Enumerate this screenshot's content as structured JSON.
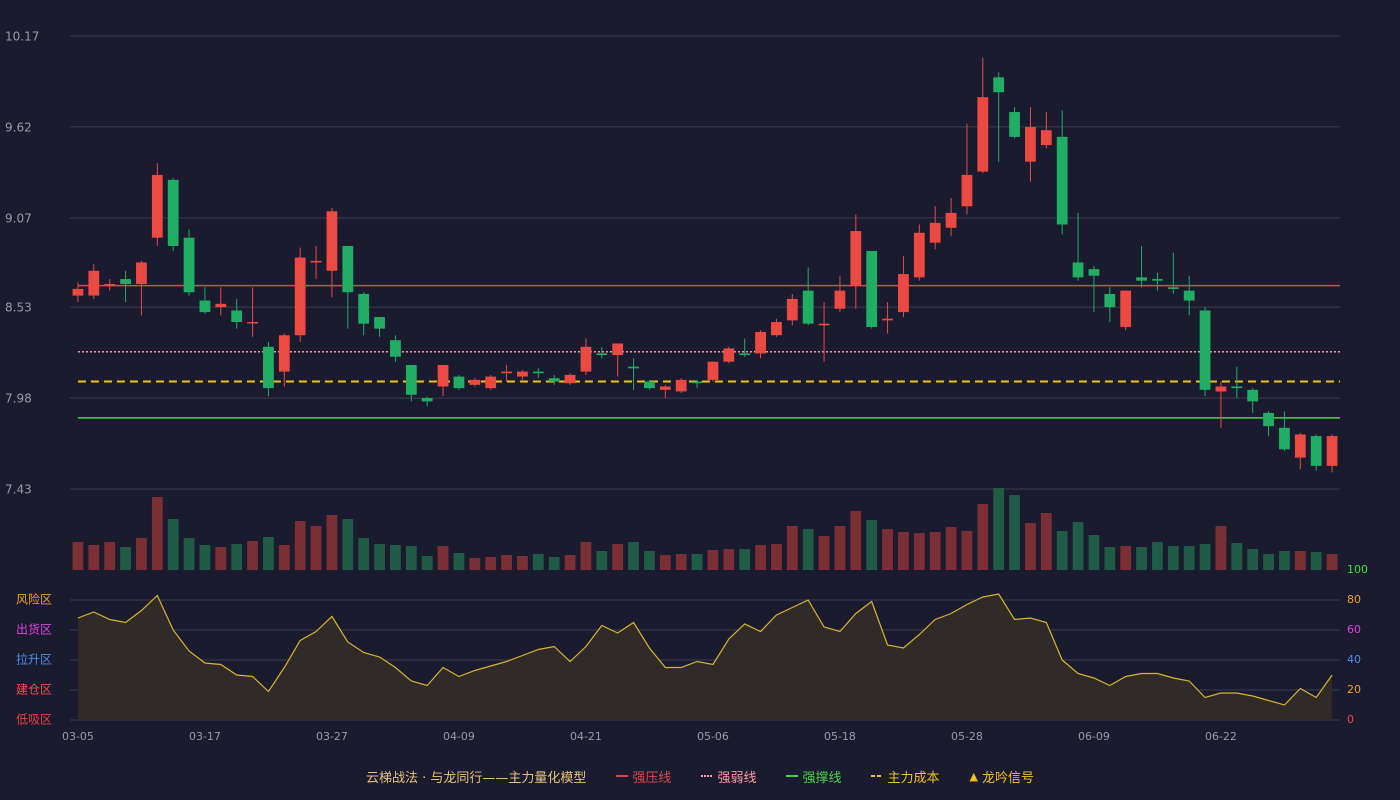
{
  "chart_data": [
    {
      "type": "candlestick",
      "categories": [
        "03-05",
        null,
        null,
        null,
        null,
        null,
        null,
        null,
        "03-17",
        null,
        null,
        null,
        null,
        null,
        null,
        null,
        "03-27",
        null,
        null,
        null,
        null,
        null,
        null,
        null,
        "04-09",
        null,
        null,
        null,
        null,
        null,
        null,
        null,
        "04-21",
        null,
        null,
        null,
        null,
        null,
        null,
        null,
        "05-06",
        null,
        null,
        null,
        null,
        null,
        null,
        null,
        "05-18",
        null,
        null,
        null,
        null,
        null,
        null,
        null,
        "05-28",
        null,
        null,
        null,
        null,
        null,
        null,
        null,
        "06-09",
        null,
        null,
        null,
        null,
        null,
        null,
        null,
        "06-22",
        null,
        null,
        null,
        null,
        null,
        null,
        null
      ],
      "open": [
        8.6,
        8.6,
        8.66,
        8.7,
        8.67,
        8.95,
        9.3,
        8.95,
        8.57,
        8.53,
        8.51,
        8.44,
        8.29,
        8.14,
        8.36,
        8.8,
        8.75,
        8.9,
        8.61,
        8.47,
        8.33,
        8.18,
        7.98,
        8.05,
        8.11,
        8.06,
        8.04,
        8.13,
        8.11,
        8.14,
        8.1,
        8.07,
        8.14,
        8.25,
        8.24,
        8.17,
        8.08,
        8.03,
        8.02,
        8.08,
        8.09,
        8.2,
        8.25,
        8.25,
        8.36,
        8.45,
        8.63,
        8.42,
        8.52,
        8.66,
        8.87,
        8.45,
        8.5,
        8.71,
        8.92,
        9.01,
        9.14,
        9.35,
        9.92,
        9.71,
        9.41,
        9.51,
        9.56,
        8.8,
        8.76,
        8.61,
        8.41,
        8.71,
        8.7,
        8.65,
        8.63,
        8.51,
        8.02,
        8.05,
        8.03,
        7.89,
        7.8,
        7.62,
        7.75,
        7.57
      ],
      "high": [
        8.68,
        8.79,
        8.7,
        8.75,
        8.81,
        9.4,
        9.31,
        9.0,
        8.65,
        8.65,
        8.58,
        8.65,
        8.32,
        8.37,
        8.89,
        8.9,
        9.13,
        8.9,
        8.62,
        8.47,
        8.36,
        8.18,
        7.99,
        8.18,
        8.12,
        8.1,
        8.12,
        8.18,
        8.15,
        8.16,
        8.12,
        8.13,
        8.34,
        8.29,
        8.31,
        8.22,
        8.09,
        8.06,
        8.1,
        8.09,
        8.2,
        8.29,
        8.34,
        8.39,
        8.46,
        8.61,
        8.77,
        8.56,
        8.72,
        9.09,
        8.87,
        8.56,
        8.84,
        9.03,
        9.14,
        9.19,
        9.64,
        10.04,
        9.95,
        9.74,
        9.74,
        9.71,
        9.72,
        9.1,
        8.78,
        8.65,
        8.63,
        8.9,
        8.74,
        8.86,
        8.72,
        8.53,
        8.08,
        8.17,
        8.04,
        7.9,
        7.9,
        7.77,
        7.76,
        7.76
      ],
      "low": [
        8.56,
        8.58,
        8.63,
        8.56,
        8.48,
        8.9,
        8.87,
        8.6,
        8.49,
        8.48,
        8.4,
        8.35,
        7.99,
        8.05,
        8.32,
        8.7,
        8.59,
        8.4,
        8.36,
        8.35,
        8.2,
        7.96,
        7.93,
        7.99,
        8.03,
        8.05,
        8.03,
        8.08,
        8.09,
        8.1,
        8.06,
        8.06,
        8.12,
        8.22,
        8.11,
        8.03,
        8.03,
        7.98,
        8.01,
        8.04,
        8.08,
        8.19,
        8.23,
        8.22,
        8.35,
        8.42,
        8.42,
        8.2,
        8.5,
        8.52,
        8.4,
        8.37,
        8.47,
        8.69,
        8.88,
        8.96,
        9.09,
        9.34,
        9.41,
        9.55,
        9.29,
        9.49,
        8.97,
        8.69,
        8.5,
        8.44,
        8.39,
        8.65,
        8.63,
        8.61,
        8.48,
        7.99,
        7.8,
        7.98,
        7.89,
        7.75,
        7.66,
        7.55,
        7.54,
        7.53
      ],
      "close": [
        8.64,
        8.75,
        8.67,
        8.67,
        8.8,
        9.33,
        8.9,
        8.62,
        8.5,
        8.55,
        8.44,
        8.44,
        8.04,
        8.36,
        8.83,
        8.81,
        9.11,
        8.62,
        8.43,
        8.4,
        8.23,
        8.0,
        7.96,
        8.18,
        8.04,
        8.09,
        8.11,
        8.14,
        8.14,
        8.13,
        8.08,
        8.12,
        8.29,
        8.24,
        8.31,
        8.16,
        8.04,
        8.05,
        8.09,
        8.07,
        8.2,
        8.28,
        8.24,
        8.38,
        8.44,
        8.58,
        8.43,
        8.43,
        8.63,
        8.99,
        8.41,
        8.46,
        8.73,
        8.98,
        9.04,
        9.1,
        9.33,
        9.8,
        9.83,
        9.56,
        9.62,
        9.6,
        9.03,
        8.71,
        8.72,
        8.53,
        8.63,
        8.69,
        8.69,
        8.64,
        8.57,
        8.03,
        8.05,
        8.04,
        7.96,
        7.81,
        7.67,
        7.76,
        7.57,
        7.75
      ],
      "up_color": "#eb4a42",
      "down_color": "#22ad64",
      "ylim": [
        7.43,
        10.17
      ],
      "yticks": [
        10.17,
        9.62,
        9.07,
        8.53,
        7.98,
        7.43
      ],
      "grid": true,
      "lines": [
        {
          "name": "强压线",
          "value": 8.66,
          "color": "#d9494b",
          "style": "solid"
        },
        {
          "name": "强弱线",
          "value": 8.26,
          "color": "#ff9aa6",
          "style": "dotted"
        },
        {
          "name": "强撑线",
          "value": 7.86,
          "color": "#4fd14f",
          "style": "solid"
        },
        {
          "name": "主力成本",
          "value": 8.08,
          "color": "#f2c21c",
          "style": "dashed"
        }
      ]
    },
    {
      "type": "bar",
      "values": [
        28,
        25,
        28,
        23,
        32,
        73,
        51,
        32,
        25,
        23,
        26,
        29,
        33,
        25,
        49,
        44,
        55,
        51,
        32,
        26,
        25,
        24,
        14,
        24,
        17,
        12,
        13,
        15,
        14,
        16,
        13,
        15,
        28,
        19,
        26,
        28,
        19,
        15,
        16,
        16,
        20,
        21,
        21,
        25,
        26,
        44,
        41,
        34,
        44,
        59,
        50,
        41,
        38,
        37,
        38,
        43,
        39,
        66,
        82,
        75,
        47,
        57,
        39,
        48,
        35,
        23,
        24,
        23,
        28,
        24,
        24,
        26,
        44,
        27,
        21,
        16,
        19,
        19,
        18,
        16
      ],
      "up_color": "#7a2f35",
      "down_color": "#1f5b45"
    },
    {
      "type": "area",
      "values": [
        68,
        72,
        67,
        65,
        73,
        83,
        60,
        46,
        38,
        37,
        30,
        29,
        19,
        35,
        53,
        59,
        69,
        52,
        45,
        42,
        35,
        26,
        23,
        35,
        29,
        33,
        36,
        39,
        43,
        47,
        49,
        39,
        49,
        63,
        58,
        65,
        48,
        35,
        35,
        39,
        37,
        54,
        64,
        59,
        70,
        75,
        80,
        62,
        59,
        71,
        79,
        50,
        48,
        57,
        67,
        71,
        77,
        82,
        84,
        67,
        68,
        65,
        40,
        31,
        28,
        23,
        29,
        31,
        31,
        28,
        26,
        15,
        18,
        18,
        16,
        13,
        10,
        21,
        15,
        30
      ],
      "color": "#d8b52a",
      "fill": "#302b29",
      "ylim": [
        0,
        100
      ],
      "yticks": [
        0,
        20,
        40,
        60,
        80,
        100
      ],
      "ytick_colors": [
        "#f04545",
        "#f0a030",
        "#4a90e8",
        "#e043e0",
        "#f0a030",
        "#3fe03f"
      ],
      "zones": [
        {
          "label": "风险区",
          "value": 80,
          "color": "#f0a030"
        },
        {
          "label": "出货区",
          "value": 60,
          "color": "#e043e0"
        },
        {
          "label": "拉升区",
          "value": 40,
          "color": "#4a90e8"
        },
        {
          "label": "建仓区",
          "value": 20,
          "color": "#f05050"
        },
        {
          "label": "低吸区",
          "value": 0,
          "color": "#e84040"
        }
      ]
    }
  ],
  "legend": {
    "title": "云梯战法 · 与龙同行——主力量化模型",
    "signal": {
      "symbol": "▲",
      "name": "龙吟信号",
      "color": "#f2c21c"
    }
  }
}
